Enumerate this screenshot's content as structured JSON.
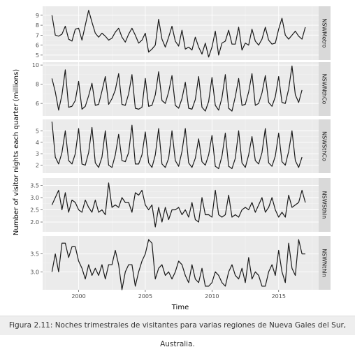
{
  "chart_data": {
    "type": "line",
    "title": "",
    "xlabel": "Time",
    "ylabel": "Number of visitor nights each quarter (millions)",
    "x_start": 1998,
    "frequency": 4,
    "xlim": [
      1997.3,
      2018.0
    ],
    "x_ticks": [
      2000,
      2005,
      2010,
      2015
    ],
    "x_tick_labels": [
      "2000",
      "2005",
      "2010",
      "2015"
    ],
    "grid": true,
    "panels": [
      {
        "name": "NSWMetro",
        "ylim": [
          4.5,
          9.9
        ],
        "y_ticks": [
          5,
          6,
          7,
          8,
          9
        ],
        "y_tick_labels": [
          "5",
          "6",
          "7",
          "8",
          "9"
        ],
        "values": [
          9.0,
          7.0,
          6.9,
          7.1,
          7.9,
          6.6,
          6.4,
          7.6,
          7.7,
          6.5,
          8.0,
          9.5,
          8.3,
          7.2,
          6.8,
          7.2,
          6.9,
          6.5,
          6.7,
          7.3,
          7.7,
          6.8,
          6.3,
          7.1,
          7.7,
          7.0,
          6.2,
          6.5,
          7.2,
          5.3,
          5.6,
          6.0,
          8.6,
          6.6,
          5.8,
          6.8,
          7.9,
          6.4,
          5.9,
          7.5,
          5.6,
          5.8,
          5.5,
          6.8,
          5.8,
          5.1,
          6.2,
          4.8,
          5.8,
          7.4,
          5.0,
          6.2,
          6.4,
          7.5,
          6.1,
          6.1,
          7.8,
          5.5,
          6.2,
          6.0,
          7.6,
          6.4,
          6.0,
          6.6,
          7.8,
          6.5,
          6.1,
          6.2,
          7.6,
          8.7,
          7.0,
          6.6,
          7.0,
          7.4,
          6.9,
          6.6,
          7.8
        ]
      },
      {
        "name": "NSWNthCo",
        "ylim": [
          4.7,
          10.3
        ],
        "y_ticks": [
          6,
          8,
          10
        ],
        "y_tick_labels": [
          "6",
          "8",
          "10"
        ],
        "values": [
          8.6,
          7.2,
          5.3,
          6.9,
          9.5,
          5.6,
          5.7,
          6.3,
          8.3,
          5.4,
          5.7,
          6.8,
          8.1,
          5.8,
          5.9,
          7.3,
          8.8,
          5.9,
          6.5,
          7.4,
          9.1,
          5.9,
          5.8,
          7.0,
          9.0,
          5.5,
          5.4,
          5.6,
          8.6,
          5.7,
          5.8,
          6.9,
          9.3,
          6.3,
          6.0,
          7.2,
          8.9,
          5.8,
          5.5,
          6.5,
          8.2,
          5.5,
          5.4,
          6.4,
          8.8,
          5.6,
          5.2,
          6.2,
          8.7,
          5.8,
          5.3,
          6.6,
          9.0,
          5.5,
          5.2,
          6.7,
          8.6,
          5.8,
          5.9,
          7.2,
          9.1,
          5.8,
          6.0,
          7.1,
          8.9,
          6.1,
          5.7,
          6.7,
          8.8,
          6.1,
          6.0,
          7.5,
          9.9,
          6.9,
          6.1,
          7.4
        ]
      },
      {
        "name": "NSWSthCo",
        "ylim": [
          1.3,
          6.0
        ],
        "y_ticks": [
          2,
          3,
          4,
          5
        ],
        "y_tick_labels": [
          "2",
          "3",
          "4",
          "5"
        ],
        "values": [
          5.8,
          2.7,
          2.1,
          3.1,
          5.0,
          2.4,
          2.1,
          3.0,
          5.2,
          2.1,
          2.0,
          3.1,
          5.3,
          2.2,
          1.8,
          2.7,
          5.0,
          2.0,
          1.8,
          2.9,
          4.7,
          2.4,
          2.3,
          3.1,
          5.5,
          2.1,
          2.1,
          2.9,
          4.9,
          2.2,
          1.8,
          2.9,
          5.2,
          2.1,
          1.8,
          2.6,
          5.0,
          2.4,
          1.9,
          3.2,
          5.2,
          2.2,
          1.8,
          2.6,
          4.3,
          2.3,
          2.0,
          2.9,
          4.6,
          1.9,
          1.7,
          2.8,
          4.8,
          1.9,
          1.7,
          2.6,
          5.0,
          2.2,
          1.8,
          2.9,
          4.5,
          2.4,
          2.1,
          3.1,
          5.2,
          2.2,
          1.9,
          2.8,
          4.8,
          2.3,
          2.0,
          3.2,
          5.0,
          2.4,
          1.8,
          2.7
        ]
      },
      {
        "name": "NSWSthIn",
        "ylim": [
          1.6,
          3.8
        ],
        "y_ticks": [
          2.0,
          2.5,
          3.0,
          3.5
        ],
        "y_tick_labels": [
          "2.0",
          "2.5",
          "3.0",
          "3.5"
        ],
        "values": [
          2.7,
          3.0,
          3.3,
          2.5,
          3.2,
          2.4,
          2.9,
          2.8,
          2.5,
          2.4,
          2.9,
          2.6,
          2.4,
          2.9,
          2.4,
          2.5,
          2.3,
          3.6,
          2.6,
          2.7,
          2.6,
          3.0,
          2.8,
          2.8,
          2.4,
          3.2,
          3.1,
          3.3,
          2.7,
          2.5,
          2.7,
          1.8,
          2.6,
          2.0,
          2.6,
          2.1,
          2.5,
          2.5,
          2.6,
          2.3,
          2.5,
          2.2,
          2.8,
          2.1,
          2.0,
          3.0,
          2.3,
          2.3,
          2.2,
          3.3,
          2.3,
          2.2,
          2.3,
          3.1,
          2.2,
          2.3,
          2.2,
          2.5,
          2.6,
          2.5,
          2.8,
          2.4,
          2.7,
          3.0,
          2.4,
          2.6,
          3.0,
          2.5,
          2.2,
          2.4,
          2.2,
          3.1,
          2.6,
          2.7,
          2.8,
          3.3,
          2.8
        ]
      },
      {
        "name": "NSWNthIn",
        "ylim": [
          2.5,
          4.0
        ],
        "y_ticks": [
          3.0,
          3.5
        ],
        "y_tick_labels": [
          "3.0",
          "3.5"
        ],
        "values": [
          3.0,
          3.5,
          3.0,
          3.8,
          3.8,
          3.4,
          3.7,
          3.7,
          3.3,
          3.1,
          2.8,
          3.2,
          2.9,
          3.1,
          2.9,
          3.2,
          2.8,
          3.2,
          3.2,
          3.6,
          3.2,
          2.5,
          3.0,
          3.2,
          3.2,
          2.6,
          3.0,
          3.3,
          3.5,
          3.9,
          3.8,
          2.8,
          3.1,
          3.2,
          2.9,
          3.0,
          2.8,
          3.0,
          3.3,
          3.2,
          2.9,
          2.7,
          3.2,
          2.8,
          2.7,
          3.1,
          2.6,
          2.6,
          2.7,
          3.0,
          2.9,
          2.7,
          2.6,
          3.0,
          3.2,
          2.9,
          2.8,
          3.1,
          2.7,
          3.4,
          2.8,
          3.0,
          2.9,
          2.6,
          2.6,
          3.0,
          3.2,
          2.9,
          3.6,
          3.0,
          2.7,
          3.8,
          3.1,
          2.9,
          3.9,
          3.5,
          3.5
        ]
      }
    ]
  },
  "caption": "Figura 2.11: Noches trimestrales de visitantes para varias regiones de Nueva Gales del Sur, Australia."
}
